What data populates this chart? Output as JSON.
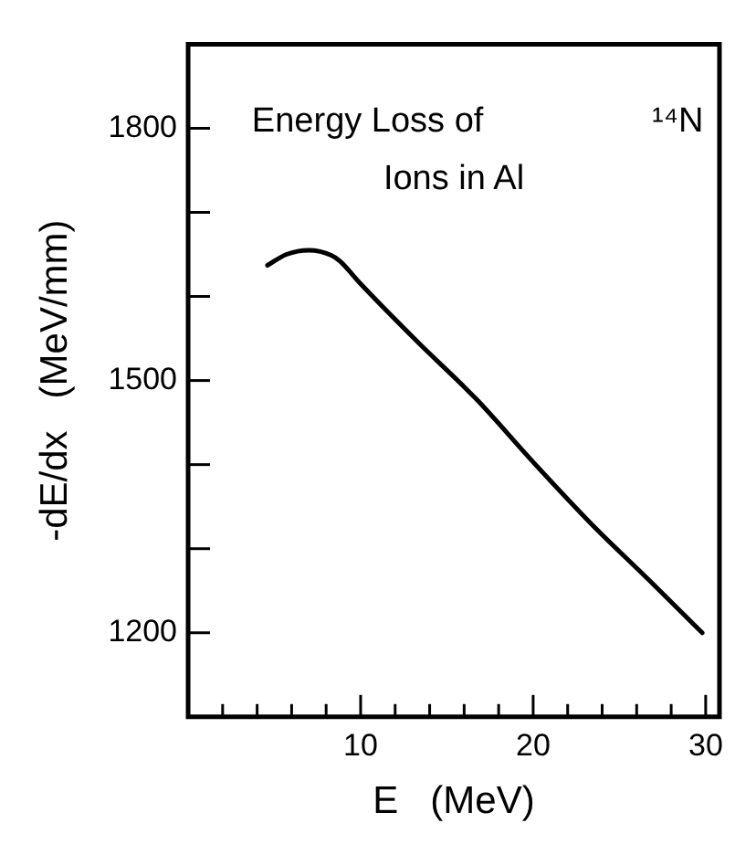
{
  "chart_data": {
    "type": "line",
    "xlabel": "E   (MeV)",
    "ylabel": "-dE/dx   (MeV/mm)",
    "annotations": [
      "Energy Loss of",
      "Ions in Al",
      "¹⁴N"
    ],
    "x": [
      4.6,
      5.7,
      7.0,
      8.3,
      8.8,
      10,
      13.3,
      16.7,
      20,
      23.3,
      26.7,
      29.8
    ],
    "series": [
      {
        "color": "#000000",
        "values": [
          1637,
          1650,
          1655,
          1649,
          1642,
          1615,
          1546,
          1478,
          1403,
          1331,
          1263,
          1200
        ]
      }
    ],
    "xlim": [
      0,
      30.8
    ],
    "ylim": [
      1100,
      1900
    ],
    "xticks": [
      {
        "value": 2,
        "label": null
      },
      {
        "value": 4,
        "label": null
      },
      {
        "value": 6,
        "label": null
      },
      {
        "value": 8,
        "label": null
      },
      10,
      {
        "value": 12,
        "label": null
      },
      {
        "value": 14,
        "label": null
      },
      {
        "value": 16,
        "label": null
      },
      {
        "value": 18,
        "label": null
      },
      20,
      {
        "value": 22,
        "label": null
      },
      {
        "value": 24,
        "label": null
      },
      {
        "value": 26,
        "label": null
      },
      {
        "value": 28,
        "label": null
      },
      30
    ],
    "yticks": [
      1200,
      {
        "value": 1300,
        "label": null
      },
      {
        "value": 1400,
        "label": null
      },
      1500,
      {
        "value": 1600,
        "label": null
      },
      {
        "value": 1700,
        "label": null
      },
      1800
    ],
    "grid": false,
    "legend": false,
    "marker": "none",
    "line_style": "solid"
  }
}
